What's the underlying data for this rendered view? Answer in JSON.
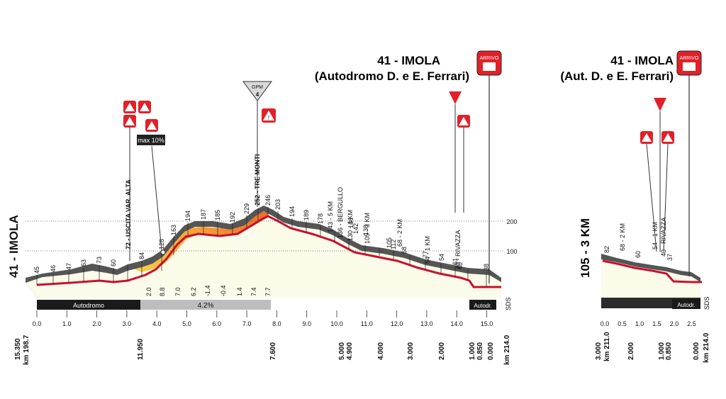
{
  "left_panel": {
    "start_label": "41 - IMOLA",
    "finish_title": "41 - IMOLA",
    "finish_subtitle": "(Autodromo D. e E. Ferrari)",
    "finish_badge": "ARRIVO",
    "kom_badge": "GPM",
    "kom_category": "4",
    "max_grade_badge": "max 10%",
    "km_ticks": [
      "0.0",
      "1.0",
      "2.0",
      "3.0",
      "4.0",
      "5.0",
      "6.0",
      "7.0",
      "8.0",
      "9.0",
      "10.0",
      "11.0",
      "12.0",
      "13.0",
      "14.0",
      "15.0"
    ],
    "ref_lines": [
      "200",
      "100"
    ],
    "altitudes": [
      "45",
      "46",
      "47",
      "63",
      "73",
      "60",
      "72",
      "84",
      "128",
      "163",
      "194",
      "187",
      "185",
      "192",
      "229",
      "252",
      "246",
      "203",
      "194",
      "189",
      "178",
      "143",
      "136",
      "142",
      "130",
      "112",
      "105",
      "77",
      "68",
      "61",
      "54",
      "40",
      "38"
    ],
    "place_labels": [
      "72 - USCITA VAR. ALTA",
      "252 - TRE MONTI",
      "143 - 5 KM",
      "136 - BERGULLO",
      "130 - 4 KM",
      "105 - 3 KM",
      "68 - 2 KM",
      "54 - 1 KM",
      "40 - RIVAZZA"
    ],
    "gradients": [
      "2.0",
      "8.8",
      "7.0",
      "6.2",
      "-1.4",
      "-0.4",
      "1.4",
      "7.4",
      "7.7"
    ],
    "segments": [
      "Autodromo",
      "4.2%",
      "Autodr."
    ],
    "km_to_go": [
      "15.350",
      "11.950",
      "7.600",
      "5.000",
      "4.900",
      "4.000",
      "3.000",
      "2.000",
      "1.000",
      "0.850",
      "0.000"
    ],
    "km_start": "km 198.7",
    "km_end": "km 214.0",
    "sds": "SDS"
  },
  "right_panel": {
    "start_label": "105 - 3 KM",
    "finish_title": "41 - IMOLA",
    "finish_subtitle": "(Aut. D. e E. Ferrari)",
    "finish_badge": "ARRIVO",
    "km_ticks": [
      "0.0",
      "0.5",
      "1.0",
      "1.5",
      "2.0",
      "2.5"
    ],
    "altitudes": [
      "82",
      "60",
      "37"
    ],
    "place_labels": [
      "68 - 2 KM",
      "54 - 1 KM",
      "40 - RIVAZZA"
    ],
    "segments": [
      "Autodr."
    ],
    "km_to_go": [
      "3.000",
      "2.000",
      "1.000",
      "0.850",
      "0.000"
    ],
    "km_start": "km 211.0",
    "km_end": "km 214.0",
    "sds": "SDS"
  }
}
